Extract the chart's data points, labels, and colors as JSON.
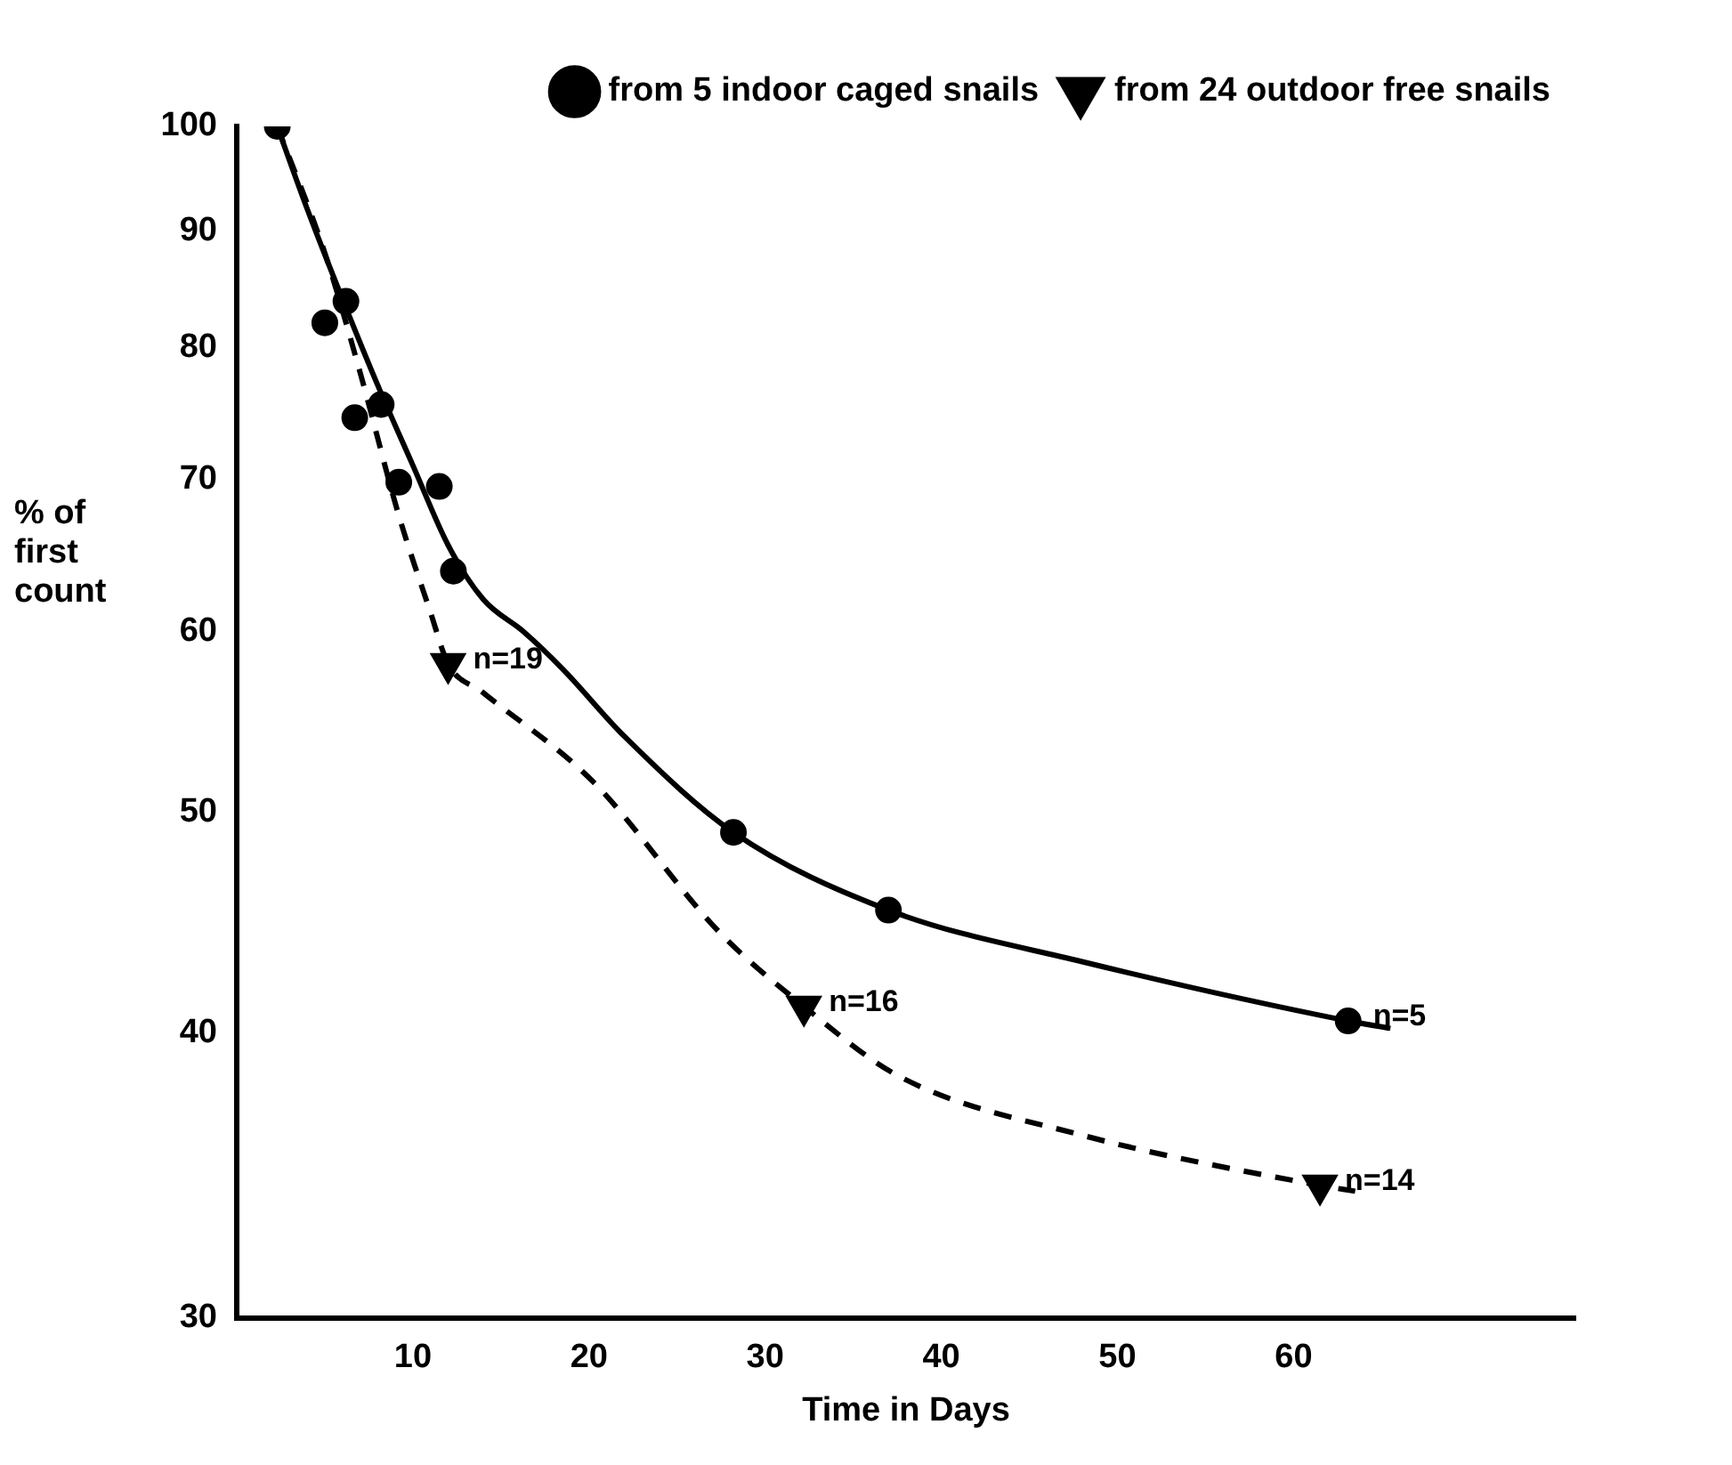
{
  "chart_data": {
    "type": "line",
    "xlabel": "Time in Days",
    "ylabel": "% of first count",
    "log": "y",
    "xlim": [
      0,
      76
    ],
    "xticks": [
      10,
      20,
      30,
      40,
      50,
      60
    ],
    "ylim": [
      30,
      100
    ],
    "yticks": [
      30,
      40,
      50,
      60,
      70,
      80,
      90,
      100
    ],
    "grid": false,
    "legend": "top right",
    "series": [
      {
        "name": "from 5 indoor caged snails",
        "type": "scatter",
        "marker": "circle",
        "line_style": "solid",
        "color": "#000000",
        "x": [
          2.3,
          5.0,
          6.2,
          6.7,
          8.2,
          9.2,
          11.5,
          12.3,
          28.2,
          37.0,
          63.1
        ],
        "values": [
          100,
          82,
          83.8,
          74.5,
          75.5,
          69.8,
          69.5,
          63.8,
          49,
          45.3,
          40.5
        ]
      },
      {
        "type": "line",
        "line_style": "solid",
        "marker": "none",
        "color": "#000000",
        "x": [
          2.3,
          4,
          6,
          8,
          10,
          12,
          14,
          16.3,
          18.5,
          22,
          28.2,
          37,
          48,
          63.1,
          65.5
        ],
        "values": [
          100,
          92,
          84,
          77,
          71,
          65.5,
          62,
          60,
          57.8,
          54,
          49,
          45.3,
          43,
          40.5,
          40.2
        ]
      },
      {
        "name": "from 24 outdoor free snails",
        "type": "scatter",
        "marker": "triangle",
        "line_style": "dashed",
        "color": "#000000",
        "x": [
          12,
          32.2,
          61.5
        ],
        "values": [
          58.1,
          41.1,
          34.3
        ]
      },
      {
        "type": "line",
        "line_style": "dashed",
        "marker": "none",
        "color": "#000000",
        "x": [
          2.3,
          5,
          7,
          9.2,
          11,
          12,
          13.9,
          20.2,
          27.4,
          32.2,
          37.6,
          47.9,
          61.5,
          63.5
        ],
        "values": [
          100,
          88,
          78,
          67.5,
          61.2,
          58.1,
          56.5,
          51.6,
          44.3,
          41.1,
          38.3,
          36.1,
          34.3,
          34.1
        ]
      }
    ],
    "annotations": [
      {
        "text": "n=19",
        "x": 12,
        "y": 58.1
      },
      {
        "text": "n=16",
        "x": 32.2,
        "y": 41.1
      },
      {
        "text": "n=5",
        "x": 63.1,
        "y": 40.5
      },
      {
        "text": "n=14",
        "x": 61.5,
        "y": 34.3
      }
    ]
  }
}
